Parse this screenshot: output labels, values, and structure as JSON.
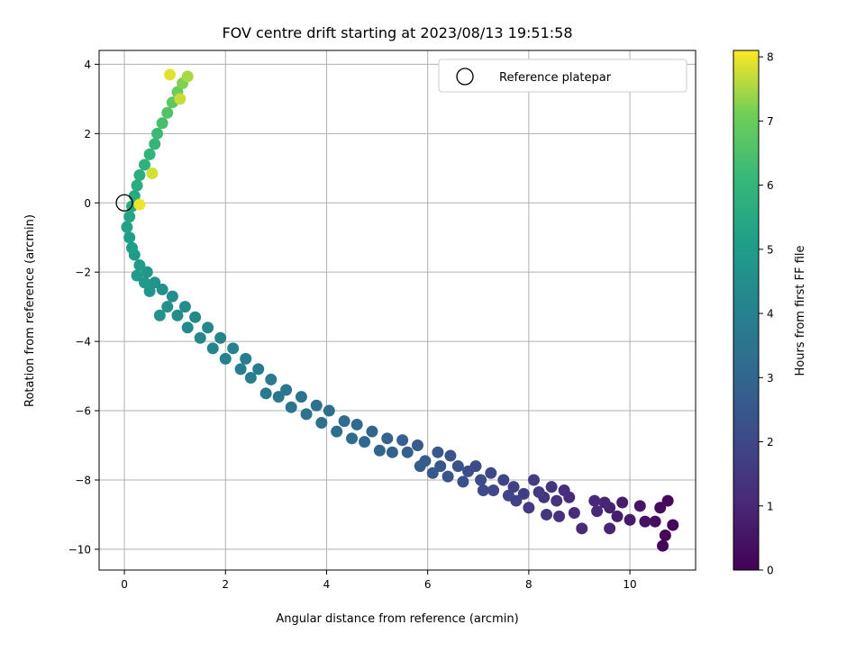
{
  "chart_data": {
    "type": "scatter",
    "title": "FOV centre drift starting at 2023/08/13 19:51:58",
    "xlabel": "Angular distance from reference (arcmin)",
    "ylabel": "Rotation from reference (arcmin)",
    "xlim": [
      -0.5,
      11.3
    ],
    "ylim": [
      -10.6,
      4.4
    ],
    "xticks": [
      0,
      2,
      4,
      6,
      8,
      10
    ],
    "yticks": [
      -10,
      -8,
      -6,
      -4,
      -2,
      0,
      2,
      4
    ],
    "xtick_labels": [
      "0",
      "2",
      "4",
      "6",
      "8",
      "10"
    ],
    "ytick_labels": [
      "−10",
      "−8",
      "−6",
      "−4",
      "−2",
      "0",
      "2",
      "4"
    ],
    "grid": true,
    "legend": {
      "position": "top-right",
      "entries": [
        "Reference platepar"
      ]
    },
    "reference_point": {
      "x": 0,
      "y": 0,
      "label": "Reference platepar"
    },
    "colorbar": {
      "label": "Hours from first FF file",
      "colormap": "viridis",
      "range": [
        0,
        8.1
      ],
      "ticks": [
        0,
        1,
        2,
        3,
        4,
        5,
        6,
        7,
        8
      ],
      "tick_labels": [
        "0",
        "1",
        "2",
        "3",
        "4",
        "5",
        "6",
        "7",
        "8"
      ]
    },
    "series": [
      {
        "points": [
          [
            10.65,
            -9.9,
            0.05
          ],
          [
            10.7,
            -9.6,
            0.1
          ],
          [
            10.85,
            -9.3,
            0.15
          ],
          [
            10.75,
            -8.6,
            0.2
          ],
          [
            10.6,
            -8.8,
            0.25
          ],
          [
            10.5,
            -9.2,
            0.35
          ],
          [
            10.3,
            -9.2,
            0.45
          ],
          [
            10.2,
            -8.75,
            0.55
          ],
          [
            10.0,
            -9.15,
            0.65
          ],
          [
            9.85,
            -8.65,
            0.7
          ],
          [
            9.75,
            -9.05,
            0.75
          ],
          [
            9.6,
            -8.8,
            0.85
          ],
          [
            9.6,
            -9.4,
            0.9
          ],
          [
            9.5,
            -8.65,
            0.95
          ],
          [
            9.35,
            -8.9,
            1.0
          ],
          [
            9.3,
            -8.6,
            1.05
          ],
          [
            9.05,
            -9.4,
            1.1
          ],
          [
            8.8,
            -8.5,
            1.15
          ],
          [
            8.9,
            -8.95,
            1.2
          ],
          [
            8.7,
            -8.3,
            1.25
          ],
          [
            8.6,
            -9.05,
            1.3
          ],
          [
            8.55,
            -8.6,
            1.35
          ],
          [
            8.45,
            -8.2,
            1.4
          ],
          [
            8.35,
            -9.0,
            1.45
          ],
          [
            8.3,
            -8.5,
            1.5
          ],
          [
            8.0,
            -8.8,
            1.55
          ],
          [
            8.2,
            -8.35,
            1.6
          ],
          [
            8.1,
            -8.0,
            1.65
          ],
          [
            7.9,
            -8.4,
            1.7
          ],
          [
            7.7,
            -8.2,
            1.75
          ],
          [
            7.75,
            -8.6,
            1.8
          ],
          [
            7.5,
            -8.0,
            1.85
          ],
          [
            7.6,
            -8.45,
            1.9
          ],
          [
            7.3,
            -8.3,
            1.95
          ],
          [
            7.25,
            -7.8,
            2.0
          ],
          [
            7.1,
            -8.3,
            2.05
          ],
          [
            6.95,
            -7.6,
            2.1
          ],
          [
            7.05,
            -8.0,
            2.15
          ],
          [
            6.8,
            -7.75,
            2.2
          ],
          [
            6.7,
            -8.05,
            2.25
          ],
          [
            6.6,
            -7.6,
            2.3
          ],
          [
            6.4,
            -7.9,
            2.35
          ],
          [
            6.45,
            -7.3,
            2.4
          ],
          [
            6.25,
            -7.6,
            2.45
          ],
          [
            6.1,
            -7.8,
            2.5
          ],
          [
            6.2,
            -7.2,
            2.55
          ],
          [
            5.95,
            -7.45,
            2.6
          ],
          [
            5.8,
            -7.0,
            2.65
          ],
          [
            5.85,
            -7.6,
            2.7
          ],
          [
            5.6,
            -7.2,
            2.75
          ],
          [
            5.5,
            -6.85,
            2.8
          ],
          [
            5.3,
            -7.2,
            2.85
          ],
          [
            5.2,
            -6.8,
            2.9
          ],
          [
            5.05,
            -7.15,
            2.95
          ],
          [
            4.9,
            -6.6,
            3.0
          ],
          [
            4.75,
            -6.9,
            3.05
          ],
          [
            4.6,
            -6.4,
            3.1
          ],
          [
            4.5,
            -6.8,
            3.15
          ],
          [
            4.35,
            -6.3,
            3.2
          ],
          [
            4.2,
            -6.6,
            3.25
          ],
          [
            4.05,
            -6.0,
            3.3
          ],
          [
            3.9,
            -6.35,
            3.35
          ],
          [
            3.8,
            -5.85,
            3.4
          ],
          [
            3.6,
            -6.1,
            3.45
          ],
          [
            3.5,
            -5.6,
            3.5
          ],
          [
            3.3,
            -5.9,
            3.55
          ],
          [
            3.2,
            -5.4,
            3.6
          ],
          [
            3.05,
            -5.6,
            3.65
          ],
          [
            2.9,
            -5.1,
            3.7
          ],
          [
            2.8,
            -5.5,
            3.75
          ],
          [
            2.65,
            -4.8,
            3.8
          ],
          [
            2.5,
            -5.05,
            3.85
          ],
          [
            2.4,
            -4.5,
            3.9
          ],
          [
            2.3,
            -4.8,
            3.95
          ],
          [
            2.15,
            -4.2,
            4.0
          ],
          [
            2.0,
            -4.5,
            4.05
          ],
          [
            1.9,
            -3.9,
            4.1
          ],
          [
            1.75,
            -4.2,
            4.15
          ],
          [
            1.65,
            -3.6,
            4.2
          ],
          [
            1.5,
            -3.9,
            4.25
          ],
          [
            1.4,
            -3.3,
            4.3
          ],
          [
            1.25,
            -3.6,
            4.35
          ],
          [
            1.2,
            -3.0,
            4.4
          ],
          [
            1.05,
            -3.25,
            4.45
          ],
          [
            0.95,
            -2.7,
            4.5
          ],
          [
            0.85,
            -3.0,
            4.55
          ],
          [
            0.75,
            -2.5,
            4.6
          ],
          [
            0.7,
            -3.25,
            4.65
          ],
          [
            0.6,
            -2.3,
            4.7
          ],
          [
            0.5,
            -2.55,
            4.75
          ],
          [
            0.45,
            -2.0,
            4.8
          ],
          [
            0.4,
            -2.3,
            4.85
          ],
          [
            0.3,
            -1.8,
            4.9
          ],
          [
            0.25,
            -2.1,
            4.95
          ],
          [
            0.2,
            -1.5,
            5.0
          ],
          [
            0.15,
            -1.3,
            5.05
          ],
          [
            0.1,
            -1.0,
            5.1
          ],
          [
            0.05,
            -0.7,
            5.2
          ],
          [
            0.1,
            -0.4,
            5.3
          ],
          [
            0.15,
            -0.1,
            5.4
          ],
          [
            0.2,
            0.2,
            5.5
          ],
          [
            0.25,
            0.5,
            5.6
          ],
          [
            0.3,
            0.8,
            5.7
          ],
          [
            0.4,
            1.1,
            5.8
          ],
          [
            0.5,
            1.4,
            5.9
          ],
          [
            0.6,
            1.7,
            6.0
          ],
          [
            0.65,
            2.0,
            6.2
          ],
          [
            0.75,
            2.3,
            6.4
          ],
          [
            0.85,
            2.6,
            6.6
          ],
          [
            0.95,
            2.9,
            6.8
          ],
          [
            1.05,
            3.2,
            7.0
          ],
          [
            1.15,
            3.45,
            7.2
          ],
          [
            1.25,
            3.65,
            7.5
          ],
          [
            1.1,
            3.0,
            7.7
          ],
          [
            0.9,
            3.7,
            7.9
          ],
          [
            0.3,
            -0.05,
            8.0
          ],
          [
            0.55,
            0.85,
            7.8
          ]
        ]
      }
    ]
  }
}
